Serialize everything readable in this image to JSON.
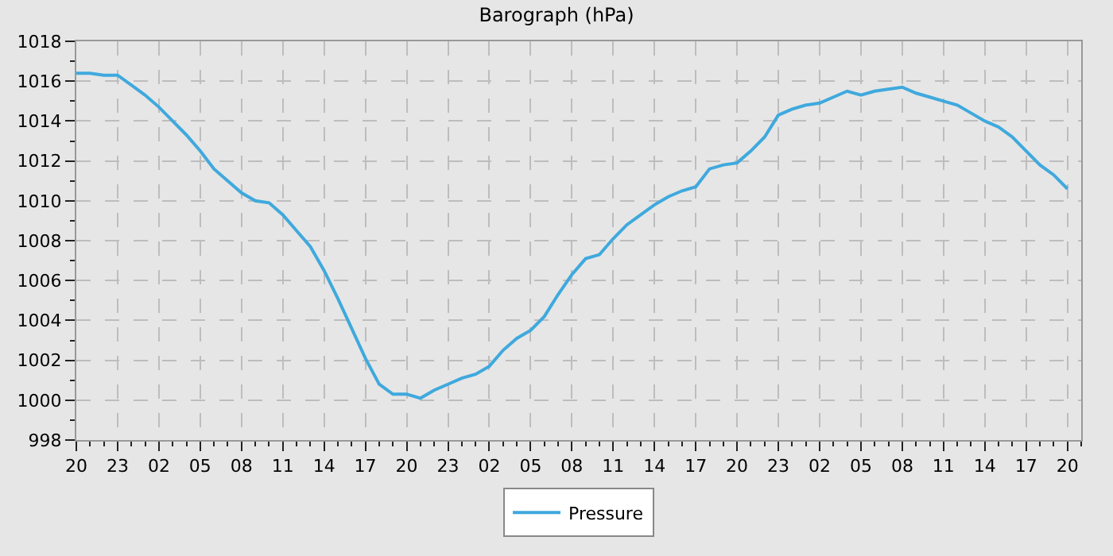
{
  "chart_data": {
    "type": "line",
    "title": "Barograph (hPa)",
    "categories": [
      "20",
      null,
      null,
      "23",
      null,
      null,
      "02",
      null,
      null,
      "05",
      null,
      null,
      "08",
      null,
      null,
      "11",
      null,
      null,
      "14",
      null,
      null,
      "17",
      null,
      null,
      "20",
      null,
      null,
      "23",
      null,
      null,
      "02",
      null,
      null,
      "05",
      null,
      null,
      "08",
      null,
      null,
      "11",
      null,
      null,
      "14",
      null,
      null,
      "17",
      null,
      null,
      "20",
      null,
      null,
      "23",
      null,
      null,
      "02",
      null,
      null,
      "05",
      null,
      null,
      "08",
      null,
      null,
      "11",
      null,
      null,
      "14",
      null,
      null,
      "17",
      null,
      null,
      "20"
    ],
    "series": [
      {
        "name": "Pressure",
        "color": "#3fa9dd",
        "values": [
          1016.4,
          1016.4,
          1016.3,
          1016.3,
          1015.8,
          1015.3,
          1014.7,
          1014.0,
          1013.3,
          1012.5,
          1011.6,
          1011.0,
          1010.4,
          1010.0,
          1009.9,
          1009.3,
          1008.5,
          1007.7,
          1006.5,
          1005.1,
          1003.6,
          1002.1,
          1000.8,
          1000.3,
          1000.3,
          1000.1,
          1000.5,
          1000.8,
          1001.1,
          1001.3,
          1001.7,
          1002.5,
          1003.1,
          1003.5,
          1004.2,
          1005.3,
          1006.3,
          1007.1,
          1007.3,
          1008.1,
          1008.8,
          1009.3,
          1009.8,
          1010.2,
          1010.5,
          1010.7,
          1011.6,
          1011.8,
          1011.9,
          1012.5,
          1013.2,
          1014.3,
          1014.6,
          1014.8,
          1014.9,
          1015.2,
          1015.5,
          1015.3,
          1015.5,
          1015.6,
          1015.7,
          1015.4,
          1015.2,
          1015.0,
          1014.8,
          1014.4,
          1014.0,
          1013.7,
          1013.2,
          1012.5,
          1011.8,
          1011.3,
          1010.6
        ]
      }
    ],
    "ylim": [
      998,
      1018
    ],
    "yticks": [
      998,
      {
        "value": 999,
        "label": null
      },
      1000,
      {
        "value": 1001,
        "label": null
      },
      1002,
      {
        "value": 1003,
        "label": null
      },
      1004,
      {
        "value": 1005,
        "label": null
      },
      1006,
      {
        "value": 1007,
        "label": null
      },
      1008,
      {
        "value": 1009,
        "label": null
      },
      1010,
      {
        "value": 1011,
        "label": null
      },
      1012,
      {
        "value": 1013,
        "label": null
      },
      1014,
      {
        "value": 1015,
        "label": null
      },
      1016,
      {
        "value": 1017,
        "label": null
      },
      1018
    ],
    "grid": true,
    "legend": "bottom",
    "line_style": "solid",
    "marker": "none"
  }
}
